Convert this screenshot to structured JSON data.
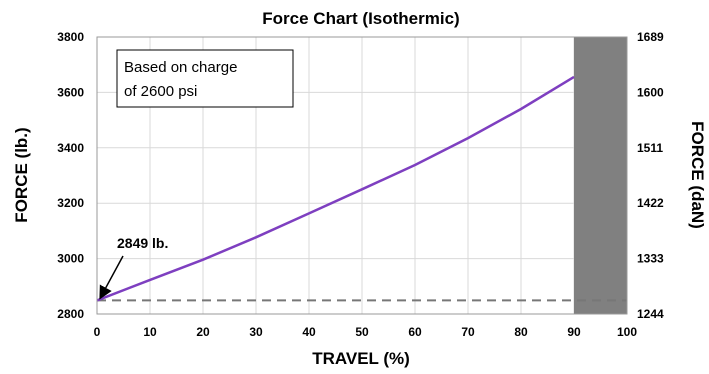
{
  "chart_data": {
    "type": "line",
    "title": "Force Chart (Isothermic)",
    "xlabel": "TRAVEL (%)",
    "ylabel": "FORCE (lb.)",
    "y2label": "FORCE (daN)",
    "xlim": [
      0,
      100
    ],
    "ylim": [
      2800,
      3800
    ],
    "y2lim": [
      1244,
      1689
    ],
    "x_ticks": [
      "0",
      "10",
      "20",
      "30",
      "40",
      "50",
      "60",
      "70",
      "80",
      "90",
      "100"
    ],
    "y_ticks": [
      "2800",
      "3000",
      "3200",
      "3400",
      "3600",
      "3800"
    ],
    "y2_ticks": [
      "1244",
      "1333",
      "1422",
      "1511",
      "1600",
      "1689"
    ],
    "grid": true,
    "series": [
      {
        "color": "#7e3fc0",
        "x": [
          0,
          10,
          20,
          30,
          40,
          50,
          60,
          70,
          80,
          90
        ],
        "y": [
          2849,
          2923,
          2996,
          3077,
          3163,
          3250,
          3338,
          3435,
          3540,
          3656
        ]
      }
    ],
    "reference_line": {
      "y": 2849,
      "style": "dashed",
      "color": "#777777"
    },
    "shaded_region": {
      "x_from": 90,
      "x_to": 100,
      "color": "#808080"
    },
    "annotation": {
      "text": "2849 lb.",
      "x": 0,
      "y": 2849
    },
    "note_lines": [
      "Based on charge",
      "of 2600 psi"
    ]
  }
}
